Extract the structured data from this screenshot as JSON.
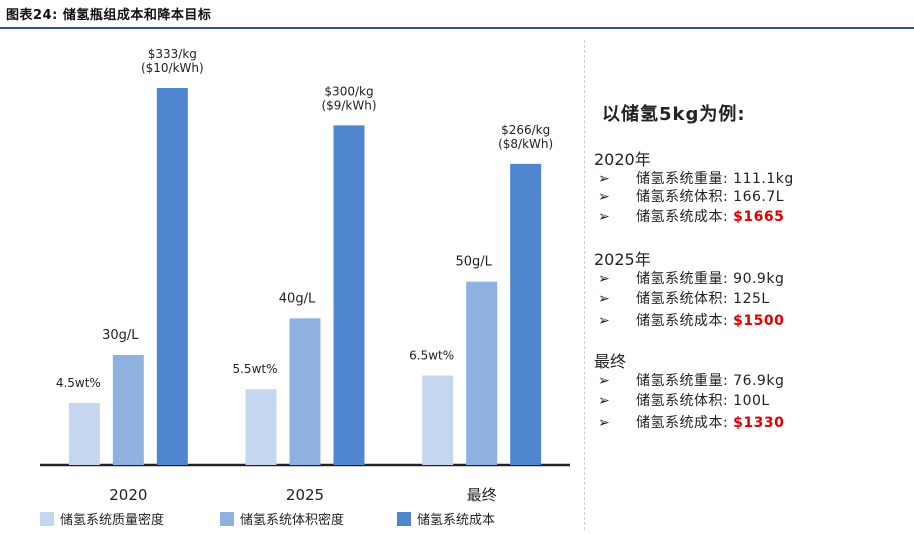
{
  "figure_title": "图表24:  储氢瓶组成本和降本目标",
  "chart_data": {
    "type": "bar",
    "categories": [
      "2020",
      "2025",
      "最终"
    ],
    "series": [
      {
        "name": "储氢系统质量密度",
        "values": [
          4.5,
          5.5,
          6.5
        ],
        "labels": [
          "4.5wt%",
          "5.5wt%",
          "6.5wt%"
        ],
        "color": "#c5d7f0"
      },
      {
        "name": "储氢系统体积密度",
        "values": [
          30,
          40,
          50
        ],
        "labels": [
          "30g/L",
          "40g/L",
          "50g/L"
        ],
        "color": "#8fb1e0"
      },
      {
        "name": "储氢系统成本",
        "values": [
          333,
          300,
          266
        ],
        "labels": [
          "$333/kg\n($10/kWh)",
          "$300/kg\n($9/kWh)",
          "$266/kg\n($8/kWh)"
        ],
        "color": "#4f86cf"
      }
    ],
    "legend_position": "bottom",
    "grid": false
  },
  "side_panel": {
    "heading": "以储氢5kg为例:",
    "arrow": "➢",
    "groups": [
      {
        "year": "2020年",
        "items": [
          {
            "label": "储氢系统重量:",
            "value": "111.1kg",
            "highlight": false
          },
          {
            "label": "储氢系统体积:",
            "value": "166.7L",
            "highlight": false
          },
          {
            "label": "储氢系统成本:",
            "value": "$1665",
            "highlight": true
          }
        ]
      },
      {
        "year": "2025年",
        "items": [
          {
            "label": "储氢系统重量:",
            "value": "90.9kg",
            "highlight": false
          },
          {
            "label": "储氢系统体积:",
            "value": "125L",
            "highlight": false
          },
          {
            "label": "储氢系统成本:",
            "value": "$1500",
            "highlight": true
          }
        ]
      },
      {
        "year": "最终",
        "items": [
          {
            "label": "储氢系统重量:",
            "value": "76.9kg",
            "highlight": false
          },
          {
            "label": "储氢系统体积:",
            "value": "100L",
            "highlight": false
          },
          {
            "label": "储氢系统成本:",
            "value": "$1330",
            "highlight": true
          }
        ]
      }
    ]
  }
}
